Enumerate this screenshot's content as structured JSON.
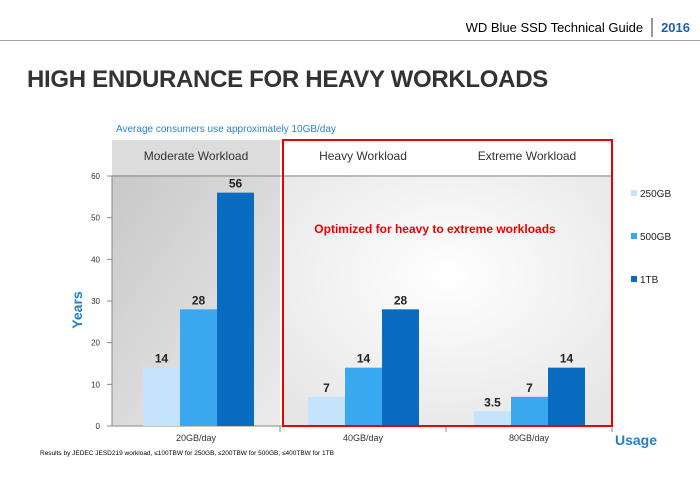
{
  "header": {
    "title": "WD Blue SSD Technical Guide",
    "year": "2016"
  },
  "slide_title": "HIGH ENDURANCE FOR HEAVY WORKLOADS",
  "chart_data": {
    "type": "bar",
    "subtitle": "Average consumers use approximately 10GB/day",
    "categories": [
      "20GB/day",
      "40GB/day",
      "80GB/day"
    ],
    "regions": [
      "Moderate Workload",
      "Heavy Workload",
      "Extreme Workload"
    ],
    "annotation": "Optimized for heavy to extreme workloads",
    "series": [
      {
        "name": "250GB",
        "values": [
          14,
          7,
          3.5
        ],
        "color": "#c5e3fb"
      },
      {
        "name": "500GB",
        "values": [
          28,
          14,
          7
        ],
        "color": "#3aa8ef"
      },
      {
        "name": "1TB",
        "values": [
          56,
          28,
          14
        ],
        "color": "#0a6cc0"
      }
    ],
    "ylabel": "Years",
    "xlabel": "Usage",
    "ylim": [
      0,
      60
    ],
    "yticks": [
      0,
      10,
      20,
      30,
      40,
      50,
      60
    ],
    "legend": "right",
    "footnote": "Results by JEDEC JESD219 workload, ≤100TBW for 250GB, ≤200TBW for 500GB, ≤400TBW for 1TB"
  }
}
